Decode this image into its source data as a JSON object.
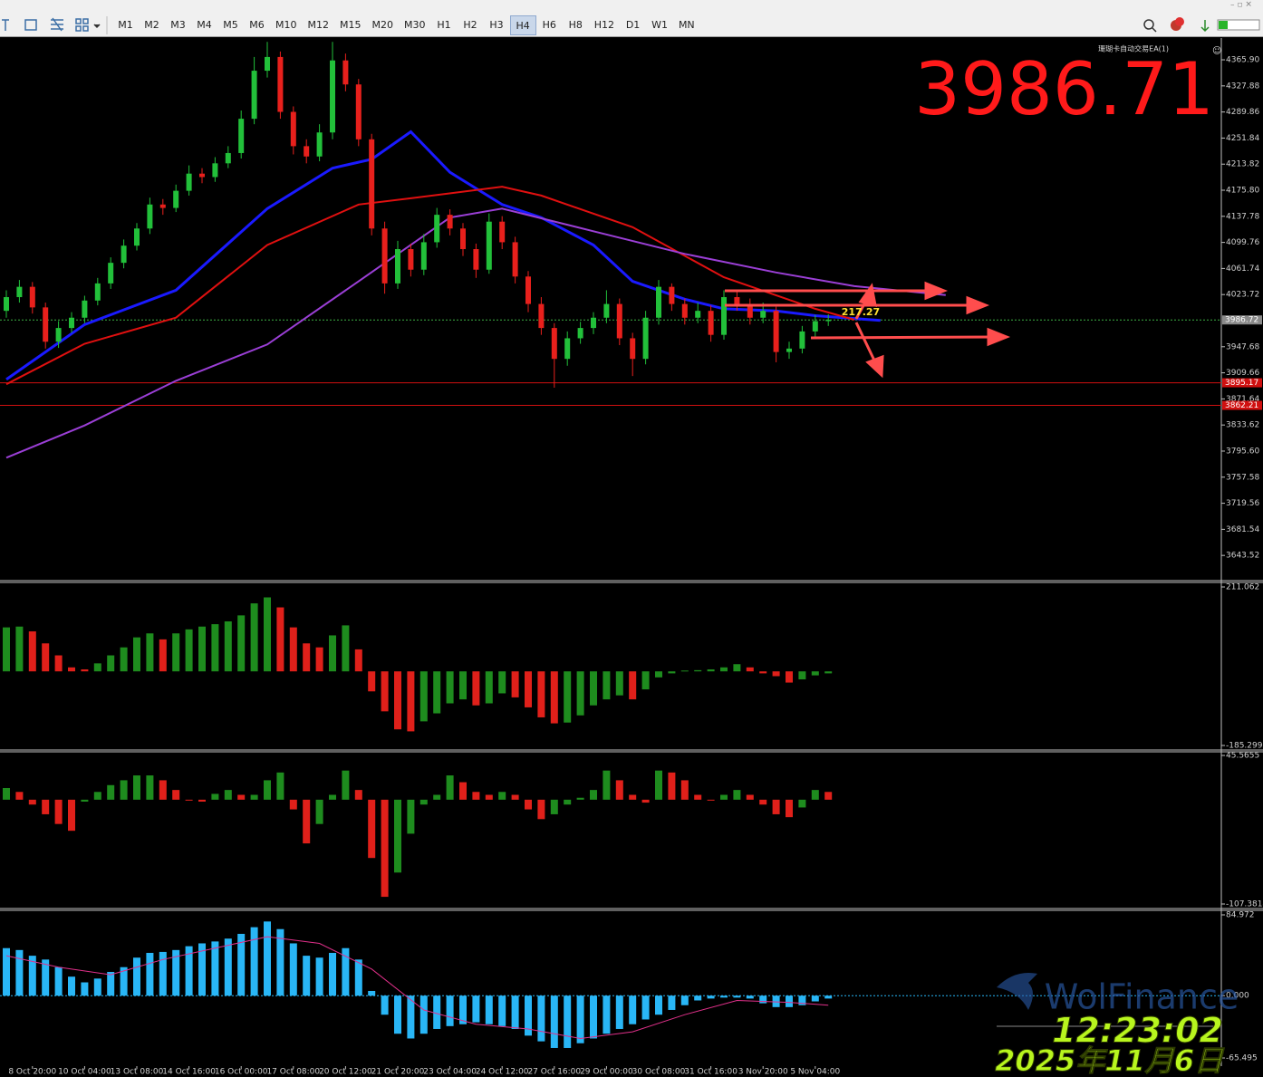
{
  "toolbar": {
    "timeframes": [
      "M1",
      "M2",
      "M3",
      "M4",
      "M5",
      "M6",
      "M10",
      "M12",
      "M15",
      "M20",
      "M30",
      "H1",
      "H2",
      "H3",
      "H4",
      "H6",
      "H8",
      "H12",
      "D1",
      "W1",
      "MN"
    ],
    "active": 14
  },
  "overlay": {
    "ea_label": "珊瑚卡自动交易EA(1)",
    "clock": "12:23:02",
    "date": "2025年11月6日",
    "watermark": "WolFinance"
  },
  "chart_data": [
    {
      "type": "candlestick",
      "last_price": 3986.71,
      "annotation": "217.27",
      "up_color": "#22c03a",
      "down_color": "#e8201c",
      "open": [
        4000,
        4020,
        4035,
        4005,
        3955,
        3975,
        3990,
        4015,
        4040,
        4070,
        4095,
        4120,
        4155,
        4150,
        4175,
        4200,
        4195,
        4215,
        4230,
        4280,
        4350,
        4370,
        4290,
        4240,
        4225,
        4260,
        4365,
        4330,
        4250,
        4120,
        4040,
        4090,
        4060,
        4100,
        4140,
        4120,
        4090,
        4060,
        4130,
        4100,
        4050,
        4010,
        3975,
        3930,
        3960,
        3975,
        3990,
        4010,
        3960,
        3930,
        3990,
        4035,
        4010,
        3990,
        4000,
        3965,
        4020,
        4010,
        3990,
        4000,
        3940,
        3945,
        3970,
        3985
      ],
      "high": [
        4030,
        4045,
        4042,
        4012,
        3985,
        3998,
        4022,
        4048,
        4078,
        4104,
        4128,
        4165,
        4163,
        4184,
        4212,
        4208,
        4224,
        4240,
        4292,
        4370,
        4392,
        4378,
        4298,
        4250,
        4272,
        4392,
        4375,
        4338,
        4258,
        4130,
        4102,
        4098,
        4112,
        4150,
        4148,
        4128,
        4098,
        4142,
        4138,
        4108,
        4058,
        4020,
        3982,
        3970,
        3984,
        3998,
        4030,
        4018,
        3968,
        4000,
        4045,
        4040,
        4018,
        4012,
        4008,
        4030,
        4028,
        4018,
        4012,
        4006,
        3955,
        3978,
        3994,
        3995
      ],
      "low": [
        3990,
        4012,
        3996,
        3945,
        3946,
        3968,
        3982,
        4008,
        4032,
        4062,
        4088,
        4112,
        4140,
        4144,
        4168,
        4186,
        4188,
        4208,
        4222,
        4272,
        4340,
        4280,
        4228,
        4215,
        4218,
        4250,
        4320,
        4240,
        4110,
        4025,
        4032,
        4050,
        4052,
        4092,
        4110,
        4080,
        4048,
        4054,
        4090,
        4040,
        3998,
        3965,
        3888,
        3920,
        3952,
        3966,
        3982,
        3950,
        3905,
        3922,
        3980,
        4000,
        3980,
        3982,
        3955,
        3958,
        4000,
        3980,
        3982,
        3925,
        3930,
        3938,
        3962,
        3978
      ],
      "close": [
        4020,
        4035,
        4005,
        3955,
        3975,
        3990,
        4015,
        4040,
        4070,
        4095,
        4120,
        4155,
        4150,
        4175,
        4200,
        4195,
        4215,
        4230,
        4280,
        4350,
        4370,
        4290,
        4240,
        4225,
        4260,
        4365,
        4330,
        4250,
        4120,
        4040,
        4090,
        4060,
        4100,
        4140,
        4120,
        4090,
        4060,
        4130,
        4100,
        4050,
        4010,
        3975,
        3930,
        3960,
        3975,
        3990,
        4010,
        3960,
        3930,
        3990,
        4035,
        4010,
        3990,
        4000,
        3965,
        4020,
        4010,
        3990,
        4000,
        3940,
        3945,
        3970,
        3985,
        3987
      ],
      "lines": [
        {
          "color": "#1a1aff",
          "x": [
            0,
            6,
            13,
            20,
            25,
            28,
            31,
            34,
            38,
            41,
            45,
            48,
            52,
            55,
            59,
            62,
            67
          ],
          "values": [
            3900,
            3980,
            4030,
            4149,
            4208,
            4221,
            4261,
            4202,
            4155,
            4136,
            4096,
            4043,
            4017,
            4003,
            4000,
            3993,
            3986
          ]
        },
        {
          "color": "#e01010",
          "x": [
            0,
            6,
            13,
            20,
            27,
            31,
            38,
            41,
            48,
            55,
            62,
            65
          ],
          "values": [
            3893,
            3952,
            3990,
            4096,
            4155,
            4164,
            4181,
            4168,
            4122,
            4049,
            4003,
            3987
          ]
        },
        {
          "color": "#9b3fd6",
          "x": [
            0,
            6,
            13,
            20,
            27,
            34,
            38,
            45,
            52,
            59,
            65,
            72
          ],
          "values": [
            3786,
            3833,
            3898,
            3951,
            4043,
            4136,
            4149,
            4116,
            4083,
            4056,
            4036,
            4023
          ]
        }
      ],
      "price_lines": [
        {
          "value": 3986.72,
          "color": "#8a8a8a",
          "line_color": "#3cb043",
          "dashed": true
        },
        {
          "value": 3895.17,
          "color": "#d01010",
          "line_color": "#d01010",
          "dashed": false
        },
        {
          "value": 3862.21,
          "color": "#d01010",
          "line_color": "#d01010",
          "dashed": false
        }
      ],
      "ylim": [
        3608.1,
        4396.3
      ],
      "yticks": [
        {
          "value": 4365.9,
          "label": "4365.90"
        },
        4327.88,
        4289.86,
        4251.84,
        4213.82,
        {
          "value": 4175.8,
          "label": "4175.80"
        },
        4137.78,
        4099.76,
        4061.74,
        4023.72,
        3947.68,
        3909.66,
        3871.64,
        3833.62,
        {
          "value": 3795.6,
          "label": "3795.60"
        },
        3757.58,
        3719.56,
        3681.54,
        3643.52
      ]
    },
    {
      "type": "histogram",
      "up_color": "#1e8c1e",
      "down_color": "#e0201a",
      "values": [
        110,
        112,
        100,
        70,
        40,
        10,
        5,
        20,
        40,
        60,
        85,
        95,
        80,
        95,
        105,
        112,
        118,
        125,
        140,
        170,
        185,
        160,
        110,
        70,
        60,
        90,
        115,
        55,
        -50,
        -100,
        -145,
        -150,
        -125,
        -105,
        -80,
        -70,
        -85,
        -80,
        -55,
        -65,
        -90,
        -115,
        -130,
        -128,
        -110,
        -85,
        -70,
        -60,
        -70,
        -45,
        -15,
        -5,
        2,
        3,
        5,
        10,
        18,
        10,
        -5,
        -12,
        -28,
        -20,
        -10,
        -5
      ],
      "ylim": [
        -185.299,
        211.062
      ],
      "yticks": [
        211.062,
        -185.299
      ]
    },
    {
      "type": "histogram",
      "up_color": "#1e8c1e",
      "down_color": "#e0201a",
      "values": [
        12,
        8,
        -5,
        -15,
        -25,
        -32,
        -2,
        8,
        15,
        20,
        25,
        25,
        20,
        10,
        0,
        -2,
        6,
        10,
        5,
        5,
        20,
        28,
        -10,
        -45,
        -25,
        5,
        30,
        10,
        -60,
        -100,
        -75,
        -35,
        -5,
        5,
        25,
        18,
        8,
        5,
        8,
        5,
        -10,
        -20,
        -15,
        -5,
        2,
        10,
        30,
        20,
        5,
        -3,
        30,
        28,
        20,
        5,
        0,
        5,
        10,
        5,
        -5,
        -15,
        -18,
        -8,
        10,
        8
      ],
      "ylim": [
        -107.3814,
        45.5655
      ],
      "yticks": [
        45.5655,
        -107.3814
      ]
    },
    {
      "type": "macd",
      "color": "#29b6f6",
      "signal_color": "#e0308a",
      "values": [
        50,
        48,
        42,
        38,
        30,
        20,
        14,
        18,
        25,
        30,
        40,
        45,
        46,
        48,
        52,
        55,
        57,
        60,
        65,
        72,
        78,
        70,
        55,
        42,
        40,
        45,
        50,
        38,
        5,
        -20,
        -40,
        -45,
        -40,
        -35,
        -32,
        -30,
        -28,
        -30,
        -32,
        -35,
        -42,
        -48,
        -55,
        -55,
        -50,
        -45,
        -40,
        -35,
        -30,
        -25,
        -20,
        -15,
        -10,
        -5,
        -3,
        -2,
        -2,
        -3,
        -8,
        -12,
        -12,
        -10,
        -6,
        -3
      ],
      "signal": {
        "x": [
          0,
          4,
          8,
          12,
          16,
          20,
          24,
          28,
          32,
          36,
          40,
          44,
          48,
          52,
          56,
          60,
          63
        ],
        "values": [
          42,
          30,
          22,
          38,
          50,
          62,
          55,
          28,
          -15,
          -30,
          -35,
          -45,
          -38,
          -20,
          -5,
          -7,
          -10
        ]
      },
      "categories": [
        null,
        null,
        "8 Oct 20:00",
        null,
        null,
        null,
        "10 Oct 04:00",
        null,
        null,
        null,
        "13 Oct 08:00",
        null,
        null,
        null,
        "14 Oct 16:00",
        null,
        null,
        null,
        "16 Oct 00:00",
        null,
        null,
        null,
        "17 Oct 08:00",
        null,
        null,
        null,
        "20 Oct 12:00",
        null,
        null,
        null,
        "21 Oct 20:00",
        null,
        null,
        null,
        "23 Oct 04:00",
        null,
        null,
        null,
        "24 Oct 12:00",
        null,
        null,
        null,
        "27 Oct 16:00",
        null,
        null,
        null,
        "29 Oct 00:00",
        null,
        null,
        null,
        "30 Oct 08:00",
        null,
        null,
        null,
        "31 Oct 16:00",
        null,
        null,
        null,
        "3 Nov 20:00",
        null,
        null,
        null,
        "5 Nov 04:00",
        null
      ],
      "ylim": [
        -65.495,
        84.972
      ],
      "yticks": [
        84.972,
        {
          "value": 0,
          "label": "0.000"
        },
        -65.495
      ]
    }
  ]
}
